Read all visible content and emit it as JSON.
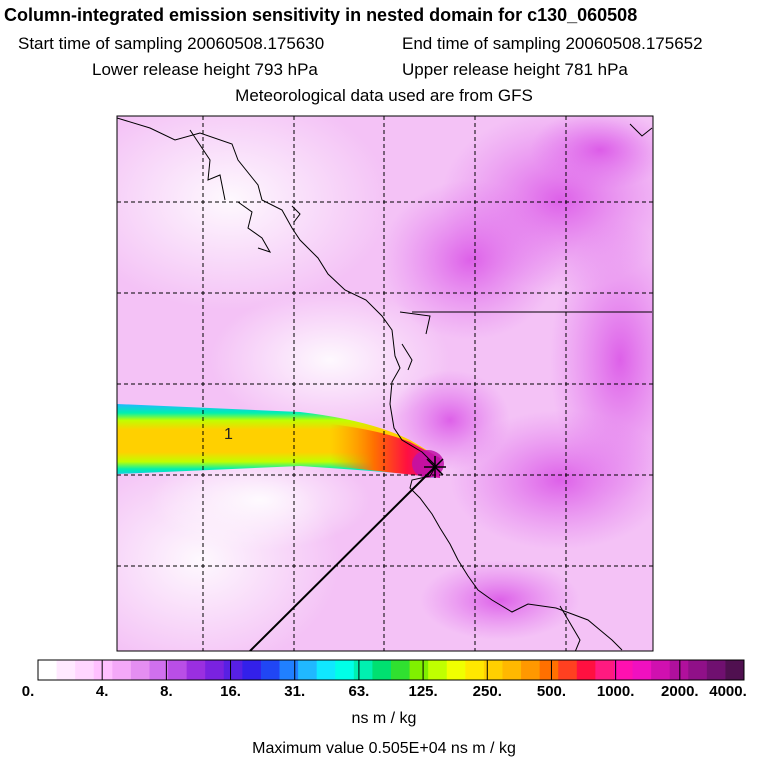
{
  "title": "Column-integrated emission sensitivity in nested domain for c130_060508",
  "header": {
    "start": "Start time of sampling 20060508.175630",
    "end": "End time of sampling 20060508.175652",
    "lower": "Lower release height  793 hPa",
    "upper": "Upper release height  781 hPa",
    "met": "Meteorological data used are from GFS"
  },
  "map": {
    "plume_label": "1",
    "grid": "dashed"
  },
  "colorbar": {
    "colors": [
      "#ffffff",
      "#ffe9ff",
      "#ffd6ff",
      "#ffc0ff",
      "#f4a8f8",
      "#e48ef2",
      "#d070ee",
      "#b94ee6",
      "#9a2fe0",
      "#7a22e0",
      "#5820e4",
      "#3320ea",
      "#2046f4",
      "#2080ff",
      "#20b8ff",
      "#10e8ff",
      "#00ffe8",
      "#00f0b0",
      "#00e070",
      "#30e030",
      "#80f000",
      "#c0ff00",
      "#f0ff00",
      "#ffe800",
      "#ffd000",
      "#ffb800",
      "#ff9800",
      "#ff7000",
      "#ff4020",
      "#ff1040",
      "#ff1a80",
      "#ff10b0",
      "#f010c0",
      "#d010b0",
      "#b0109c",
      "#901088",
      "#701070",
      "#501050"
    ],
    "ticks": [
      "0.",
      "4.",
      "8.",
      "16.",
      "31.",
      "63.",
      "125.",
      "250.",
      "500.",
      "1000.",
      "2000.",
      "4000."
    ],
    "units": "ns m / kg"
  },
  "max_value": "Maximum value  0.505E+04 ns m / kg"
}
